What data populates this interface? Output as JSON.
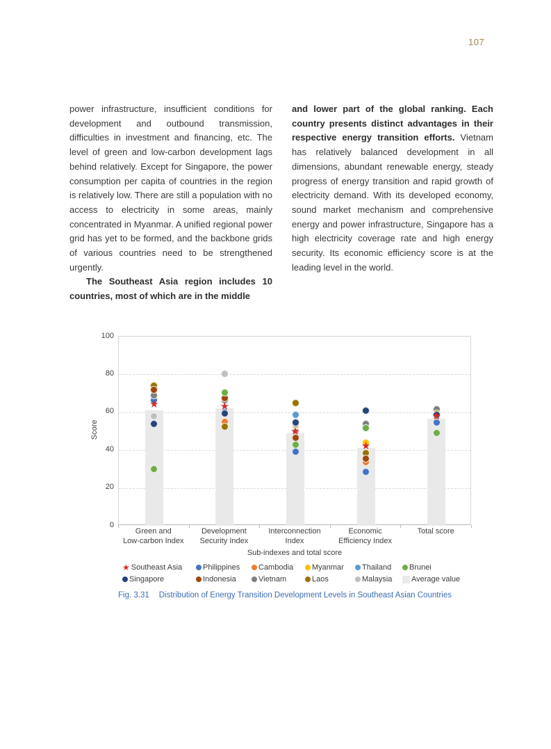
{
  "page": {
    "number": "107"
  },
  "columns": {
    "left_para1": "power infrastructure, insufficient conditions for development and outbound transmission, difficulties in investment and financing, etc. The level of green and low-carbon development lags behind relatively. Except for Singapore, the power consumption per capita of countries in the region is relatively low. There are still a population with no access to electricity in some areas, mainly concentrated in Myanmar. A unified regional power grid has yet to be formed, and the backbone grids of various countries need to be strengthened urgently.",
    "left_para2": "The Southeast Asia region includes 10 countries, most of which are in the middle",
    "right_lead": "and lower part of the global ranking. Each country presents distinct advantages in their respective energy transition efforts.",
    "right_rest": " Vietnam has relatively balanced development in all dimensions, abundant renewable energy, steady progress of energy transition and rapid growth of electricity demand. With its developed economy, sound market mechanism and comprehensive energy and power infrastructure, Singapore has a high electricity coverage rate and high energy security. Its economic efficiency score is at the leading level in the world."
  },
  "figure": {
    "caption_label": "Fig. 3.31",
    "caption_text": "Distribution of Energy Transition Development Levels in Southeast Asian Countries",
    "caption_color": "#3c6db4"
  },
  "chart_data": {
    "type": "scatter",
    "title": "",
    "xlabel": "Sub-indexes and total score",
    "ylabel": "Score",
    "ylim": [
      0,
      100
    ],
    "yticks": [
      0,
      20,
      40,
      60,
      80,
      100
    ],
    "grid": "horizontal dashed at 20/40/60/80",
    "legend_position": "bottom, two rows",
    "categories": [
      "Green and Low-carbon Index",
      "Development Security Index",
      "Interconnection Index",
      "Economic Efficiency Index",
      "Total score"
    ],
    "category_label_lines": [
      [
        "Green and",
        "Low-carbon Index"
      ],
      [
        "Development",
        "Security Index"
      ],
      [
        "Interconnection",
        "Index"
      ],
      [
        "Economic",
        "Efficiency Index"
      ],
      [
        "Total score"
      ]
    ],
    "average_bars": {
      "name": "Average value",
      "color": "#e9e9e9",
      "values": [
        61,
        62,
        49,
        41,
        56.5
      ]
    },
    "series": [
      {
        "name": "Southeast Asia",
        "marker": "star",
        "color": "#d42b2b",
        "values": [
          64,
          63,
          50,
          42,
          57.8
        ]
      },
      {
        "name": "Philippines",
        "marker": "dot",
        "color": "#4472c4",
        "values": [
          66.5,
          60,
          39,
          28.5,
          54.5
        ]
      },
      {
        "name": "Cambodia",
        "marker": "dot",
        "color": "#ed7d31",
        "values": [
          73,
          55,
          53,
          33.5,
          57.5
        ]
      },
      {
        "name": "Myanmar",
        "marker": "dot",
        "color": "#ffc000",
        "values": [
          74,
          54,
          52,
          44,
          58
        ]
      },
      {
        "name": "Thailand",
        "marker": "dot",
        "color": "#5b9bd5",
        "values": [
          68,
          66,
          58.5,
          53,
          59
        ]
      },
      {
        "name": "Brunei",
        "marker": "dot",
        "color": "#70ad47",
        "values": [
          30,
          70.5,
          43,
          51.5,
          49
        ]
      },
      {
        "name": "Singapore",
        "marker": "dot",
        "color": "#264478",
        "values": [
          54,
          59.5,
          54.5,
          61,
          58.5
        ]
      },
      {
        "name": "Indonesia",
        "marker": "dot",
        "color": "#9e480e",
        "values": [
          72,
          67.5,
          46.5,
          35.5,
          58
        ]
      },
      {
        "name": "Vietnam",
        "marker": "dot",
        "color": "#7f7f7f",
        "values": [
          69,
          66.5,
          54,
          54,
          61.5
        ]
      },
      {
        "name": "Laos",
        "marker": "dot",
        "color": "#997300",
        "values": [
          74,
          52.5,
          65,
          38.5,
          59.5
        ]
      },
      {
        "name": "Malaysia",
        "marker": "dot",
        "color": "#bfbfbf",
        "values": [
          58,
          80.5,
          50,
          54,
          61
        ]
      }
    ],
    "draw_order": [
      "Myanmar",
      "Cambodia",
      "Thailand",
      "Philippines",
      "Malaysia",
      "Vietnam",
      "Laos",
      "Indonesia",
      "Singapore",
      "Brunei",
      "Southeast Asia"
    ],
    "legend_rows": [
      [
        "Southeast Asia",
        "Philippines",
        "Cambodia",
        "Myanmar",
        "Thailand",
        "Brunei"
      ],
      [
        "Singapore",
        "Indonesia",
        "Vietnam",
        "Laos",
        "Malaysia",
        "Average value"
      ]
    ]
  }
}
